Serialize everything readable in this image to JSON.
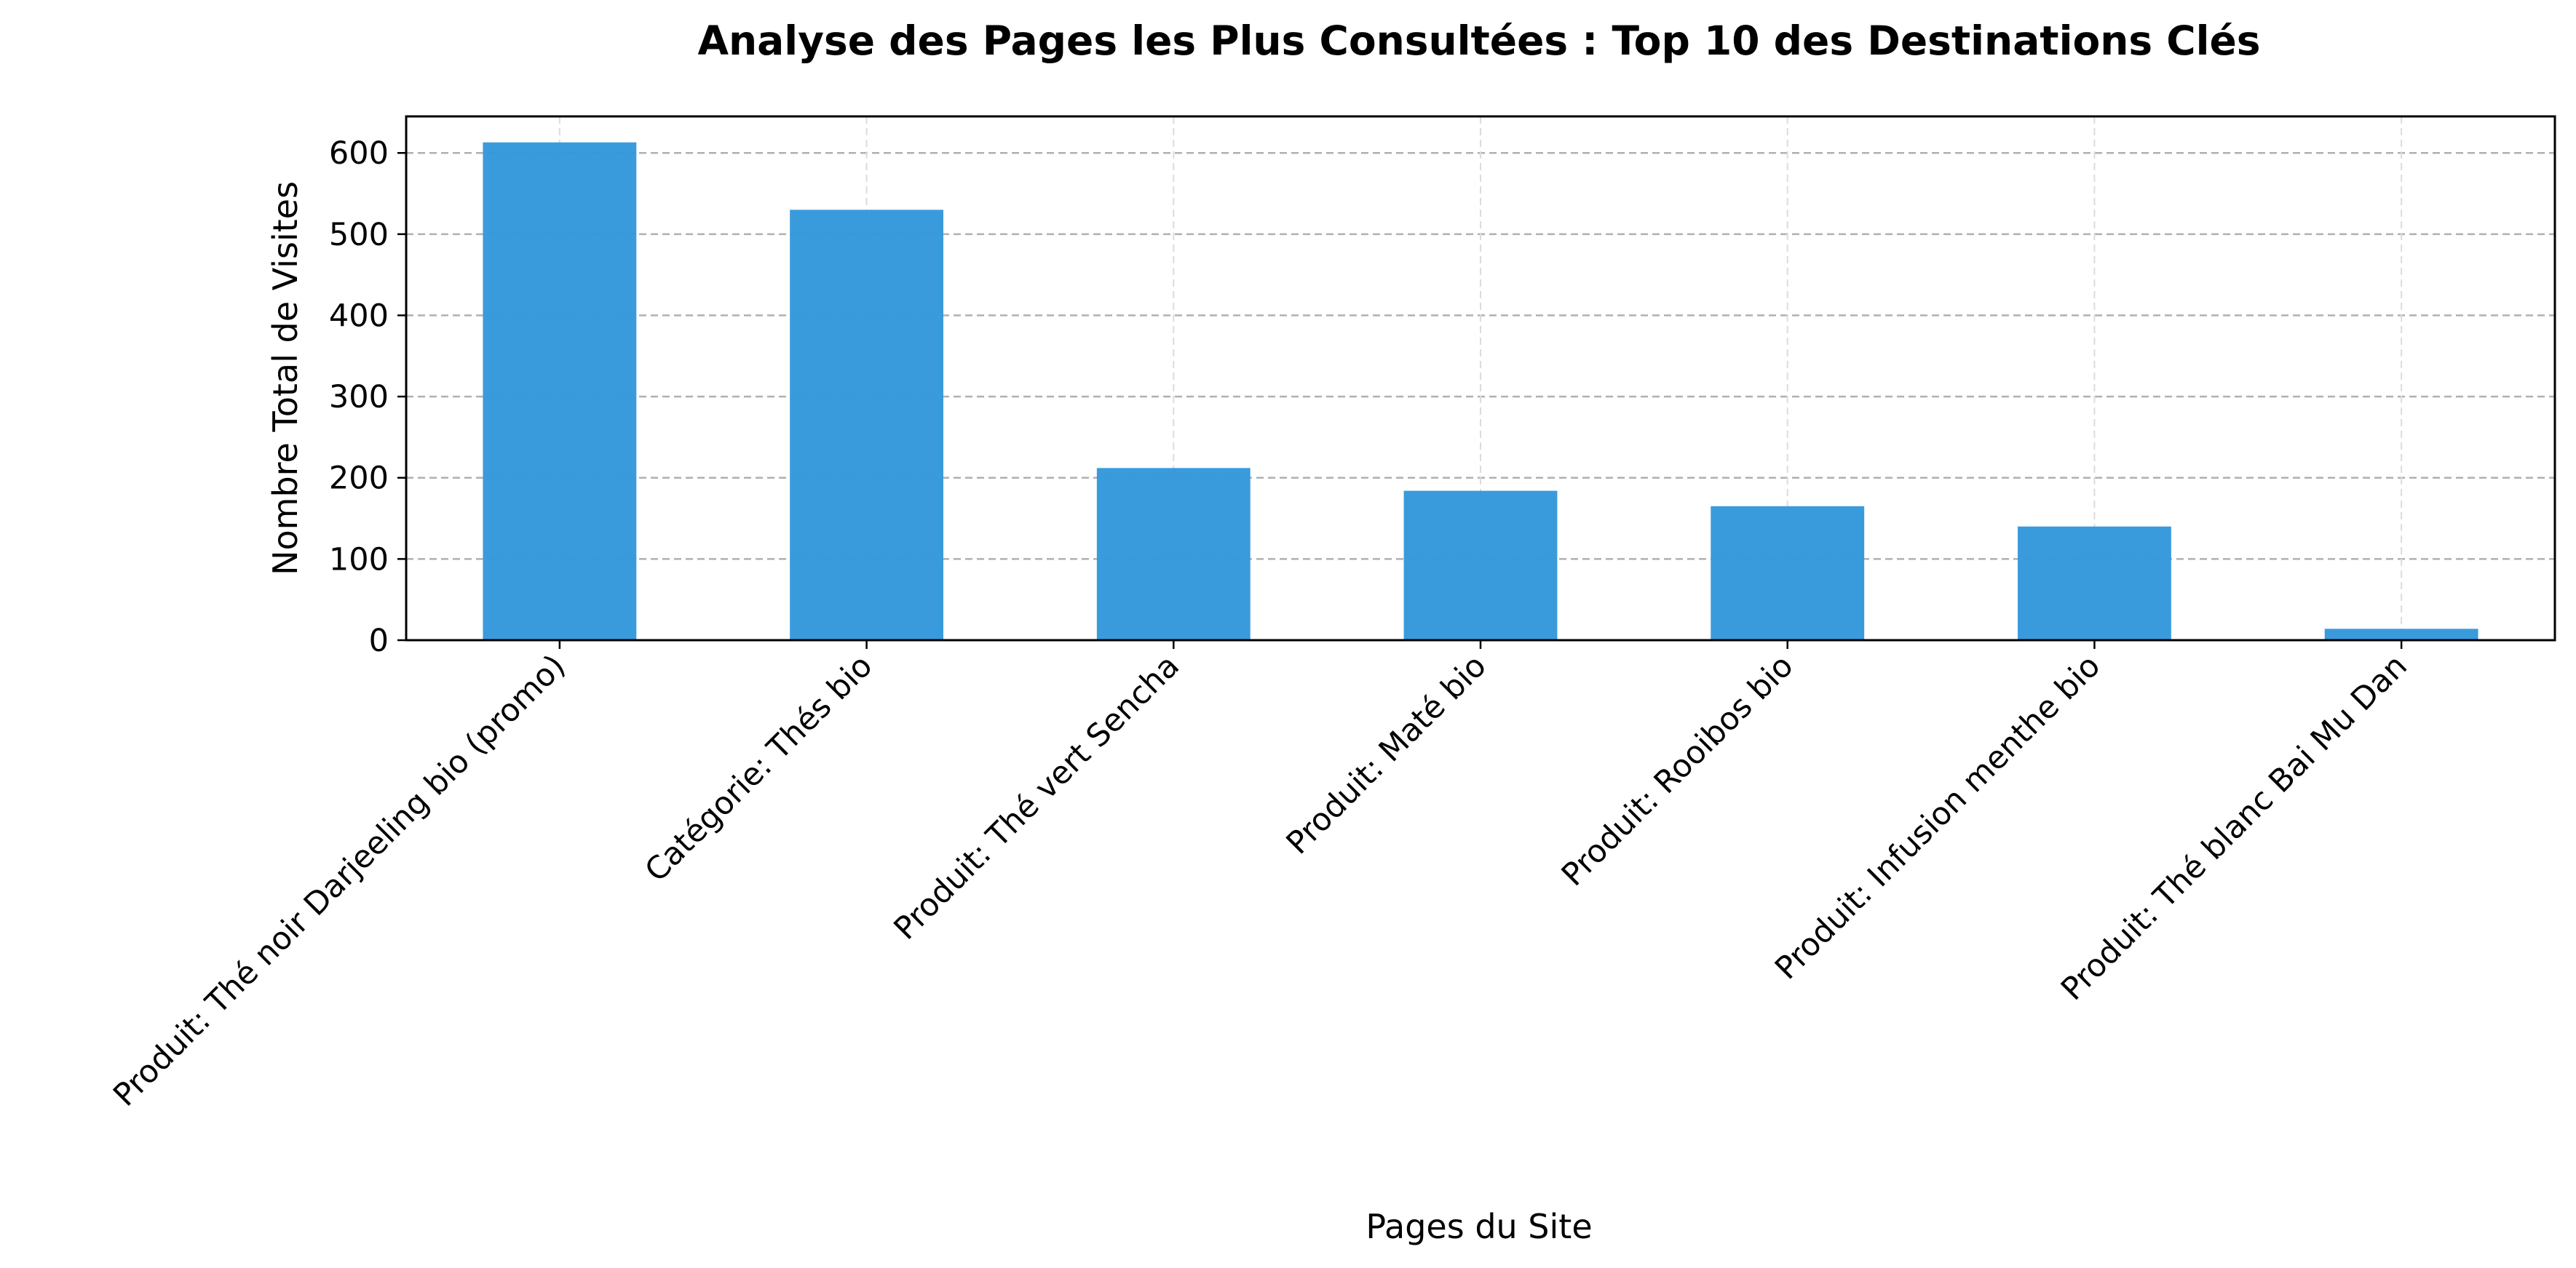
{
  "chart_data": {
    "type": "bar",
    "title": "Analyse des Pages les Plus Consultées : Top 10 des Destinations Clés",
    "xlabel": "Pages du Site",
    "ylabel": "Nombre Total de Visites",
    "categories": [
      "Produit: Thé noir Darjeeling bio (promo)",
      "Catégorie: Thés bio",
      "Produit: Thé vert Sencha",
      "Produit: Maté bio",
      "Produit: Rooibos bio",
      "Produit: Infusion menthe bio",
      "Produit: Thé blanc Bai Mu Dan"
    ],
    "values": [
      613,
      530,
      212,
      184,
      165,
      140,
      14
    ],
    "ylim": [
      0,
      645
    ],
    "yticks": [
      0,
      100,
      200,
      300,
      400,
      500,
      600
    ],
    "ytick_labels": [
      "0",
      "100",
      "200",
      "300",
      "400",
      "500",
      "600"
    ],
    "grid": true,
    "bar_color": "#3498db",
    "grid_color": "#b0b0b0",
    "axis_color": "#000000"
  }
}
